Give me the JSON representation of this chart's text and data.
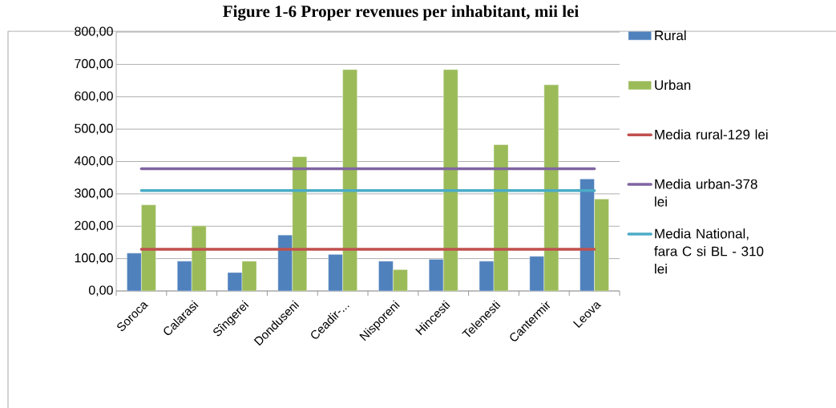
{
  "chart_data": {
    "type": "bar",
    "title": "Figure 1-6 Proper revenues per inhabitant, mii lei",
    "categories": [
      "Soroca",
      "Calarasi",
      "Sîngerei",
      "Donduseni",
      "Ceadir-...",
      "Nisporeni",
      "Hincesti",
      "Telenesti",
      "Cantermir",
      "Leova"
    ],
    "series": [
      {
        "name": "Rural",
        "type": "bar",
        "color": "#4f81bd",
        "values": [
          117,
          92,
          57,
          173,
          113,
          92,
          98,
          92,
          107,
          346
        ]
      },
      {
        "name": "Urban",
        "type": "bar",
        "color": "#9bbb59",
        "values": [
          266,
          201,
          92,
          415,
          684,
          66,
          684,
          452,
          637,
          284
        ]
      },
      {
        "name": "Media rural-129 lei",
        "type": "line",
        "color": "#c0504d",
        "values": [
          129,
          129,
          129,
          129,
          129,
          129,
          129,
          129,
          129,
          129
        ]
      },
      {
        "name": "Media urban-378 lei",
        "type": "line",
        "color": "#8064a2",
        "values": [
          378,
          378,
          378,
          378,
          378,
          378,
          378,
          378,
          378,
          378
        ]
      },
      {
        "name": "Media National, fara C si BL - 310 lei",
        "type": "line",
        "color": "#4bacc6",
        "values": [
          310,
          310,
          310,
          310,
          310,
          310,
          310,
          310,
          310,
          310
        ]
      }
    ],
    "ylim": [
      0,
      800
    ],
    "yticks": [
      {
        "value": 0,
        "label": "0,00"
      },
      {
        "value": 100,
        "label": "100,00"
      },
      {
        "value": 200,
        "label": "200,00"
      },
      {
        "value": 300,
        "label": "300,00"
      },
      {
        "value": 400,
        "label": "400,00"
      },
      {
        "value": 500,
        "label": "500,00"
      },
      {
        "value": 600,
        "label": "600,00"
      },
      {
        "value": 700,
        "label": "700,00"
      },
      {
        "value": 800,
        "label": "800,00"
      }
    ],
    "grid": "y",
    "legend": "right",
    "marker": "none"
  }
}
